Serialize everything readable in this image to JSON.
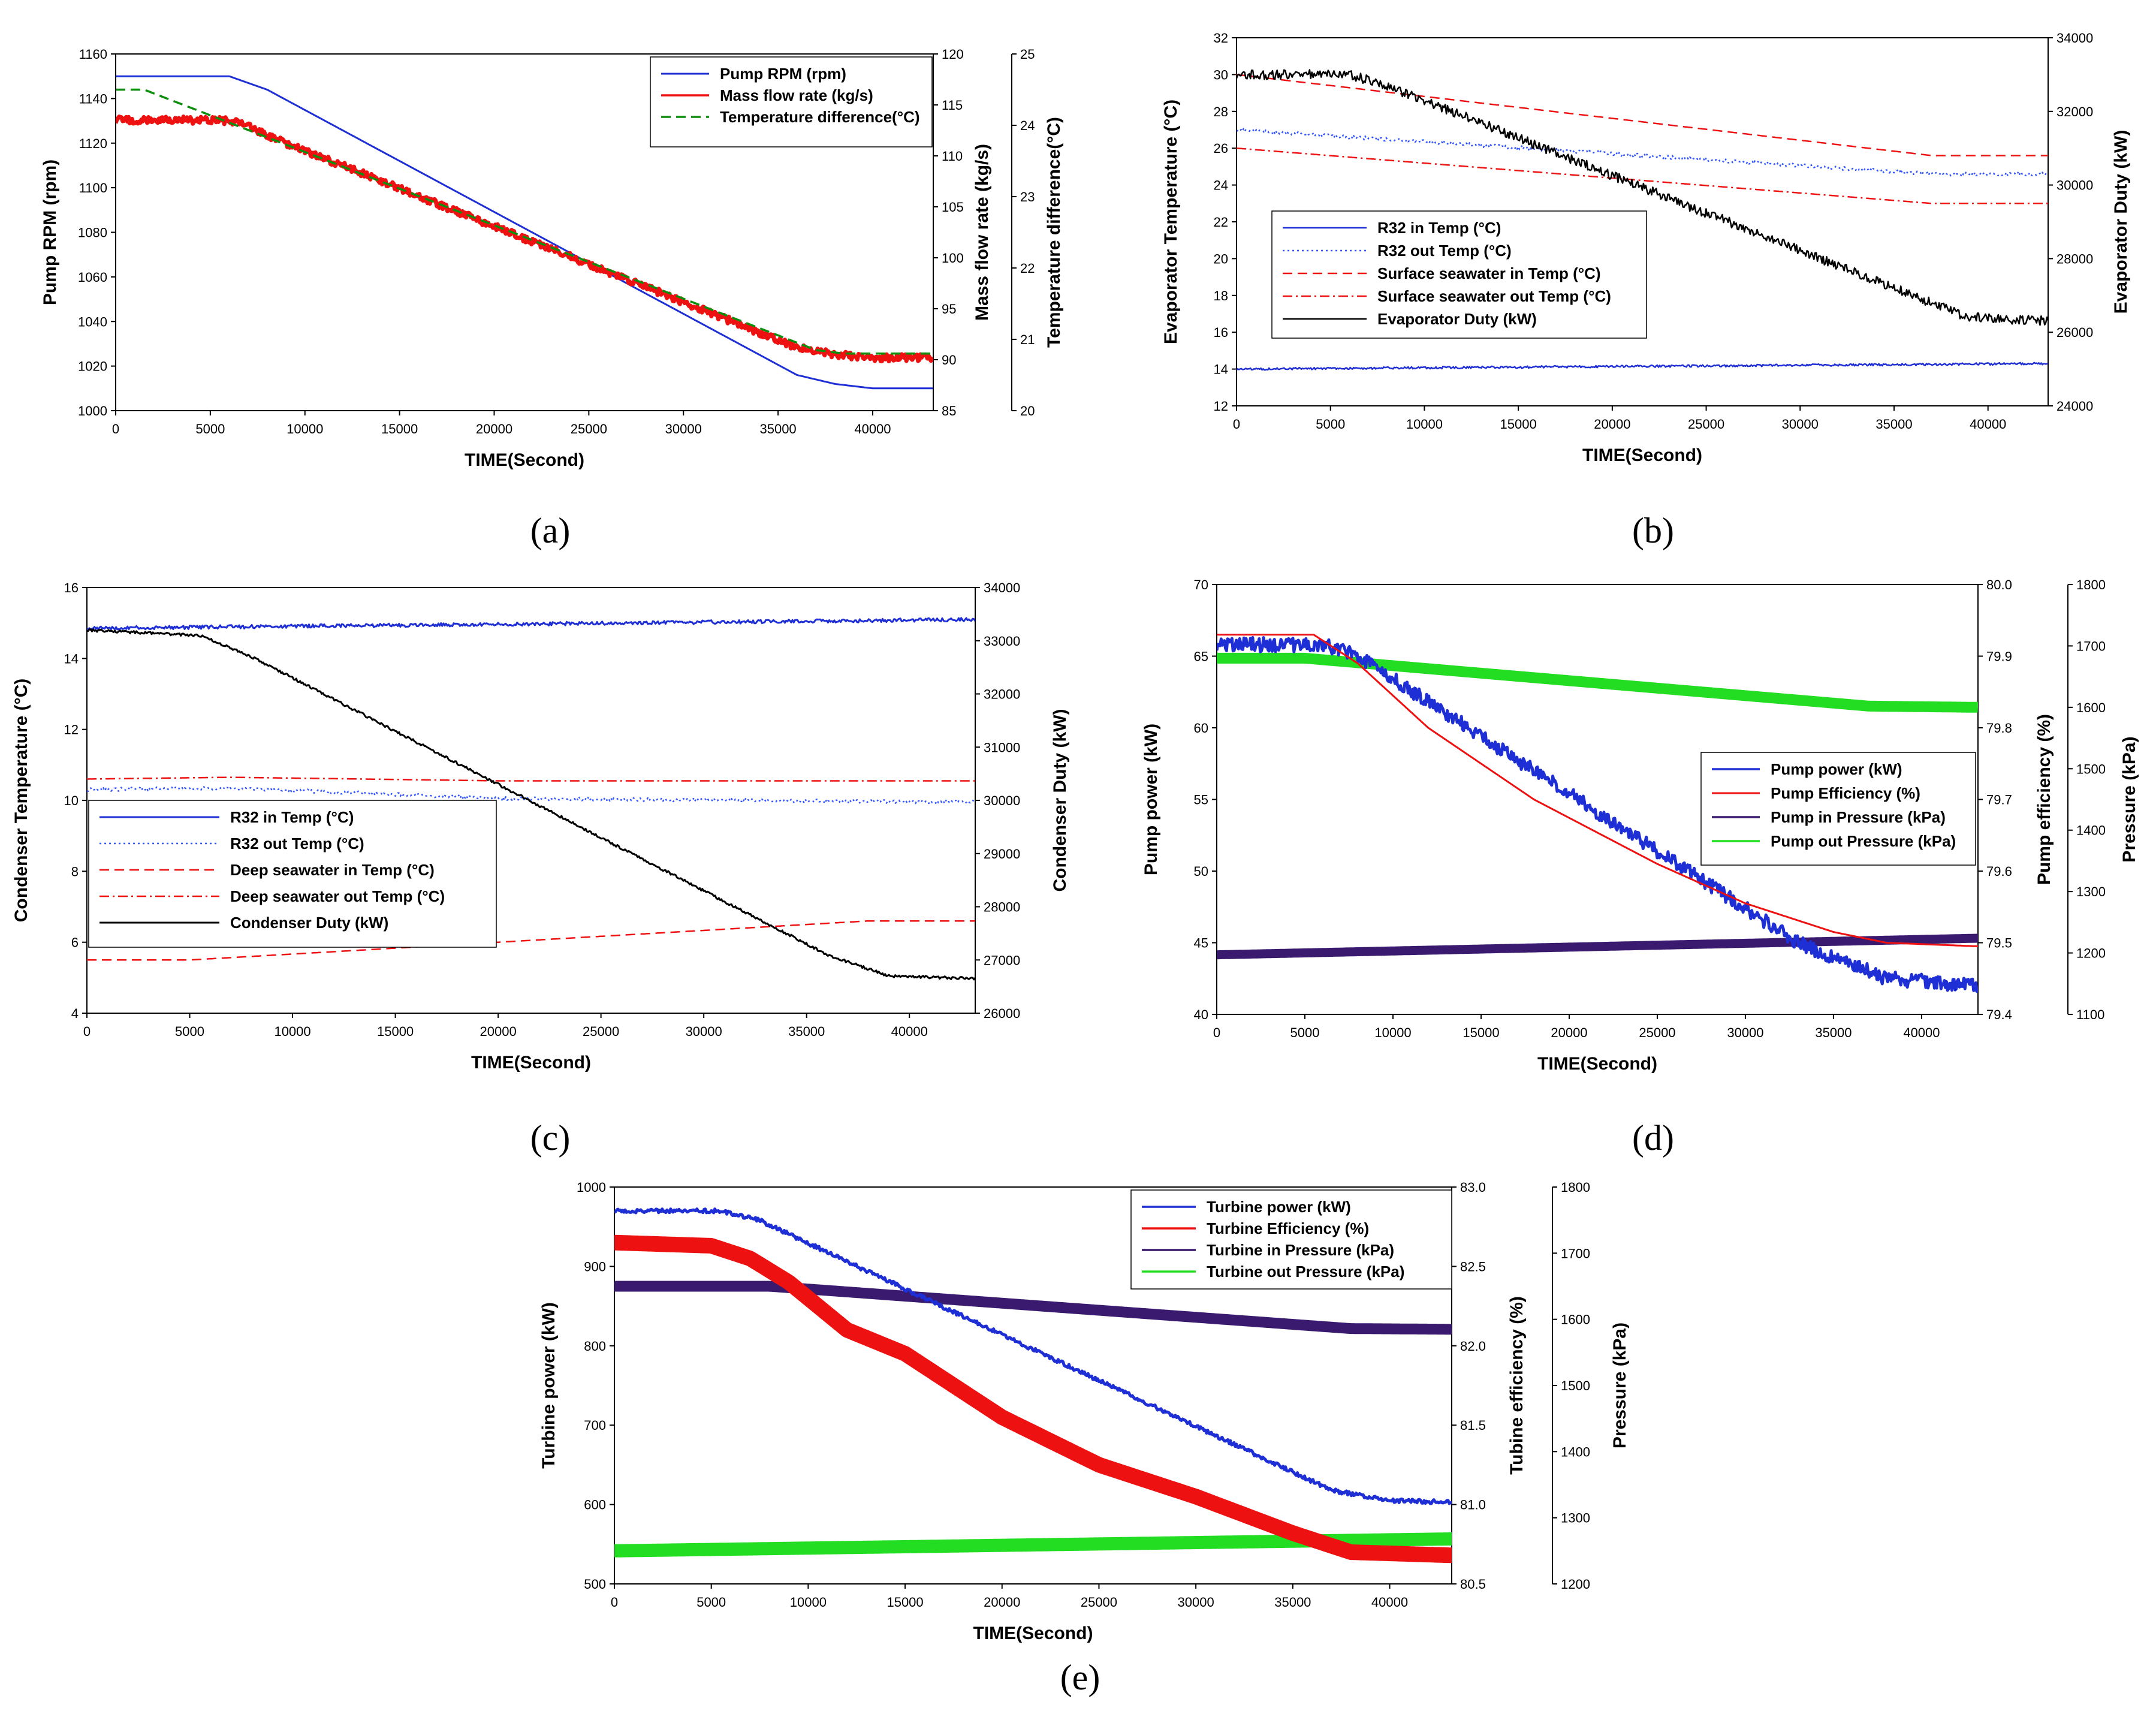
{
  "chart_data": [
    {
      "id": "a",
      "type": "line",
      "panel_label": "(a)",
      "xlabel": "TIME(Second)",
      "xlim": [
        0,
        43200
      ],
      "xticks": [
        0,
        5000,
        10000,
        15000,
        20000,
        25000,
        30000,
        35000,
        40000
      ],
      "axes": [
        {
          "id": "y1",
          "label": "Pump RPM (rpm)",
          "lim": [
            1000,
            1160
          ],
          "ticks": [
            1000,
            1020,
            1040,
            1060,
            1080,
            1100,
            1120,
            1140,
            1160
          ],
          "decimals": 0
        },
        {
          "id": "y2",
          "label": "Mass flow rate (kg/s)",
          "lim": [
            85,
            120
          ],
          "ticks": [
            85,
            90,
            95,
            100,
            105,
            110,
            115,
            120
          ],
          "decimals": 0
        },
        {
          "id": "y3",
          "label": "Temperature difference(°C)",
          "lim": [
            20,
            25
          ],
          "ticks": [
            20,
            21,
            22,
            23,
            24,
            25
          ],
          "decimals": 0
        }
      ],
      "series": [
        {
          "name": "Pump RPM (rpm)",
          "axis": "y1",
          "color": "#1f2fd6",
          "style": "solid",
          "width": 3,
          "x": [
            0,
            6000,
            8000,
            36000,
            38000,
            40000,
            43200
          ],
          "y": [
            1150,
            1150,
            1144,
            1016,
            1012,
            1010,
            1010
          ]
        },
        {
          "name": "Mass flow rate (kg/s)",
          "axis": "y2",
          "color": "#ee1111",
          "style": "solid",
          "width": 7,
          "noise": 0.35,
          "x": [
            0,
            5000,
            6500,
            8000,
            36000,
            38000,
            40000,
            43200
          ],
          "y": [
            113.5,
            113.5,
            113.4,
            112.0,
            91.2,
            90.5,
            90.2,
            90.2
          ]
        },
        {
          "name": "Temperature difference(°C)",
          "axis": "y3",
          "color": "#0d8f0d",
          "style": "dash",
          "width": 3.5,
          "x": [
            0,
            1500,
            37000,
            38500,
            43200
          ],
          "y": [
            24.5,
            24.5,
            20.85,
            20.8,
            20.8
          ]
        }
      ]
    },
    {
      "id": "b",
      "type": "line",
      "panel_label": "(b)",
      "xlabel": "TIME(Second)",
      "xlim": [
        0,
        43200
      ],
      "xticks": [
        0,
        5000,
        10000,
        15000,
        20000,
        25000,
        30000,
        35000,
        40000
      ],
      "axes": [
        {
          "id": "y1",
          "label": "Evaporator Temperature (°C)",
          "lim": [
            12,
            32
          ],
          "ticks": [
            12,
            14,
            16,
            18,
            20,
            22,
            24,
            26,
            28,
            30,
            32
          ],
          "decimals": 0
        },
        {
          "id": "y2",
          "label": "Evaporator Duty (kW)",
          "lim": [
            24000,
            34000
          ],
          "ticks": [
            24000,
            26000,
            28000,
            30000,
            32000,
            34000
          ],
          "decimals": 0
        }
      ],
      "series": [
        {
          "name": "R32 in Temp (°C)",
          "axis": "y1",
          "color": "#1f2fd6",
          "style": "solid",
          "width": 2.5,
          "noise": 0.06,
          "x": [
            0,
            43200
          ],
          "y": [
            14.0,
            14.3
          ]
        },
        {
          "name": "R32 out Temp (°C)",
          "axis": "y1",
          "color": "#3355ff",
          "style": "dot",
          "width": 2.5,
          "noise": 0.1,
          "x": [
            0,
            37000,
            43200
          ],
          "y": [
            27.0,
            24.6,
            24.6
          ]
        },
        {
          "name": "Surface seawater in Temp (°C)",
          "axis": "y1",
          "color": "#ee1111",
          "style": "dash",
          "width": 2.5,
          "x": [
            0,
            37000,
            43200
          ],
          "y": [
            30.0,
            25.6,
            25.6
          ]
        },
        {
          "name": "Surface seawater out Temp (°C)",
          "axis": "y1",
          "color": "#ee1111",
          "style": "dashdot",
          "width": 2.5,
          "x": [
            0,
            37000,
            43200
          ],
          "y": [
            26.0,
            23.0,
            23.0
          ]
        },
        {
          "name": "Evaporator Duty (kW)",
          "axis": "y2",
          "color": "#000000",
          "style": "solid",
          "width": 2.5,
          "noise": 130,
          "x": [
            0,
            6000,
            8000,
            36000,
            39000,
            43200
          ],
          "y": [
            33000,
            33000,
            32700,
            27000,
            26400,
            26300
          ]
        }
      ],
      "legend": [
        "R32 in Temp (°C)",
        "R32 out Temp (°C)",
        "Surface seawater in Temp (°C)",
        "Surface seawater out Temp (°C)",
        "Evaporator Duty (kW)"
      ]
    },
    {
      "id": "c",
      "type": "line",
      "panel_label": "(c)",
      "xlabel": "TIME(Second)",
      "xlim": [
        0,
        43200
      ],
      "xticks": [
        0,
        5000,
        10000,
        15000,
        20000,
        25000,
        30000,
        35000,
        40000
      ],
      "axes": [
        {
          "id": "y1",
          "label": "Condenser Temperature (°C)",
          "lim": [
            4,
            16
          ],
          "ticks": [
            4,
            6,
            8,
            10,
            12,
            14,
            16
          ],
          "decimals": 0
        },
        {
          "id": "y2",
          "label": "Condenser Duty (kW)",
          "lim": [
            26000,
            34000
          ],
          "ticks": [
            26000,
            27000,
            28000,
            29000,
            30000,
            31000,
            32000,
            33000,
            34000
          ],
          "decimals": 0
        }
      ],
      "series": [
        {
          "name": "R32 in Temp (°C)",
          "axis": "y1",
          "color": "#1f2fd6",
          "style": "solid",
          "width": 3,
          "noise": 0.05,
          "x": [
            0,
            43200
          ],
          "y": [
            14.85,
            15.1
          ]
        },
        {
          "name": "R32 out Temp (°C)",
          "axis": "y1",
          "color": "#3355ff",
          "style": "dot",
          "width": 2.5,
          "noise": 0.05,
          "x": [
            0,
            7000,
            20000,
            43200
          ],
          "y": [
            10.3,
            10.35,
            10.05,
            9.95
          ]
        },
        {
          "name": "Deep seawater in Temp (°C)",
          "axis": "y1",
          "color": "#ee1111",
          "style": "dash",
          "width": 2.5,
          "x": [
            0,
            5000,
            38000,
            43200
          ],
          "y": [
            5.5,
            5.5,
            6.6,
            6.6
          ]
        },
        {
          "name": "Deep seawater out Temp (°C)",
          "axis": "y1",
          "color": "#ee1111",
          "style": "dashdot",
          "width": 2.5,
          "x": [
            0,
            7000,
            20000,
            43200
          ],
          "y": [
            10.6,
            10.65,
            10.55,
            10.55
          ]
        },
        {
          "name": "Condenser Duty (kW)",
          "axis": "y2",
          "color": "#000000",
          "style": "solid",
          "width": 3,
          "noise": 25,
          "x": [
            0,
            5500,
            8000,
            36000,
            39000,
            43200
          ],
          "y": [
            33200,
            33100,
            32700,
            27100,
            26700,
            26650
          ]
        }
      ]
    },
    {
      "id": "d",
      "type": "line",
      "panel_label": "(d)",
      "xlabel": "TIME(Second)",
      "xlim": [
        0,
        43200
      ],
      "xticks": [
        0,
        5000,
        10000,
        15000,
        20000,
        25000,
        30000,
        35000,
        40000
      ],
      "axes": [
        {
          "id": "y1",
          "label": "Pump power (kW)",
          "lim": [
            40,
            70
          ],
          "ticks": [
            40,
            45,
            50,
            55,
            60,
            65,
            70
          ],
          "decimals": 0
        },
        {
          "id": "y2",
          "label": "Pump efficiency (%)",
          "lim": [
            79.4,
            80.0
          ],
          "ticks": [
            79.4,
            79.5,
            79.6,
            79.7,
            79.8,
            79.9,
            80.0
          ],
          "decimals": 1
        },
        {
          "id": "y3",
          "label": "Pressure (kPa)",
          "lim": [
            1100,
            1800
          ],
          "ticks": [
            1100,
            1200,
            1300,
            1400,
            1500,
            1600,
            1700,
            1800
          ],
          "decimals": 0
        }
      ],
      "series": [
        {
          "name": "Pump out Pressure (kPa)",
          "axis": "y3",
          "color": "#22dd22",
          "style": "solid",
          "width": 18,
          "x": [
            0,
            5000,
            37000,
            43200
          ],
          "y": [
            1680,
            1680,
            1602,
            1600
          ]
        },
        {
          "name": "Pump in Pressure (kPa)",
          "axis": "y3",
          "color": "#3a1a6e",
          "style": "solid",
          "width": 15,
          "x": [
            0,
            43200
          ],
          "y": [
            1197,
            1224
          ]
        },
        {
          "name": "Pump power (kW)",
          "axis": "y1",
          "color": "#1f2fd6",
          "style": "solid",
          "width": 5,
          "noise": 0.5,
          "x": [
            0,
            6000,
            8000,
            33000,
            38000,
            43200
          ],
          "y": [
            65.8,
            65.8,
            65.0,
            45.0,
            42.5,
            42.0
          ]
        },
        {
          "name": "Pump Efficiency (%)",
          "axis": "y2",
          "color": "#ee1111",
          "style": "solid",
          "width": 3,
          "x": [
            0,
            5500,
            8000,
            12000,
            18000,
            25000,
            30000,
            35000,
            38000,
            43200
          ],
          "y": [
            79.93,
            79.93,
            79.89,
            79.8,
            79.7,
            79.61,
            79.555,
            79.515,
            79.5,
            79.495
          ]
        }
      ],
      "legend": [
        "Pump power (kW)",
        "Pump Efficiency (%)",
        "Pump in Pressure (kPa)",
        "Pump out Pressure (kPa)"
      ]
    },
    {
      "id": "e",
      "type": "line",
      "panel_label": "(e)",
      "xlabel": "TIME(Second)",
      "xlim": [
        0,
        43200
      ],
      "xticks": [
        0,
        5000,
        10000,
        15000,
        20000,
        25000,
        30000,
        35000,
        40000
      ],
      "axes": [
        {
          "id": "y1",
          "label": "Turbine power (kW)",
          "lim": [
            500,
            1000
          ],
          "ticks": [
            500,
            600,
            700,
            800,
            900,
            1000
          ],
          "decimals": 0
        },
        {
          "id": "y2",
          "label": "Tubine efficiency (%)",
          "lim": [
            80.5,
            83.0
          ],
          "ticks": [
            80.5,
            81.0,
            81.5,
            82.0,
            82.5,
            83.0
          ],
          "decimals": 1
        },
        {
          "id": "y3",
          "label": "Pressure (kPa)",
          "lim": [
            1200,
            1800
          ],
          "ticks": [
            1200,
            1300,
            1400,
            1500,
            1600,
            1700,
            1800
          ],
          "decimals": 0
        }
      ],
      "series": [
        {
          "name": "Turbine out Pressure (kPa)",
          "axis": "y3",
          "color": "#22dd22",
          "style": "solid",
          "width": 22,
          "x": [
            0,
            43200
          ],
          "y": [
            1250,
            1268
          ]
        },
        {
          "name": "Turbine in Pressure (kPa)",
          "axis": "y3",
          "color": "#3a1a6e",
          "style": "solid",
          "width": 18,
          "x": [
            0,
            8000,
            38000,
            43200
          ],
          "y": [
            1650,
            1650,
            1586,
            1585
          ]
        },
        {
          "name": "Turbine power (kW)",
          "axis": "y1",
          "color": "#1f2fd6",
          "style": "solid",
          "width": 5,
          "noise": 2.5,
          "x": [
            0,
            5500,
            7500,
            37000,
            40000,
            43200
          ],
          "y": [
            970,
            970,
            958,
            618,
            605,
            603
          ]
        },
        {
          "name": "Turbine Efficiency (%)",
          "axis": "y2",
          "color": "#ee1111",
          "style": "solid",
          "width": 26,
          "x": [
            0,
            5000,
            7000,
            9000,
            12000,
            15000,
            20000,
            25000,
            30000,
            35000,
            38000,
            43200
          ],
          "y": [
            82.65,
            82.63,
            82.55,
            82.4,
            82.1,
            81.95,
            81.55,
            81.25,
            81.05,
            80.82,
            80.7,
            80.68
          ]
        }
      ],
      "legend": [
        "Turbine power (kW)",
        "Turbine Efficiency (%)",
        "Turbine in Pressure (kPa)",
        "Turbine out Pressure (kPa)"
      ]
    }
  ]
}
